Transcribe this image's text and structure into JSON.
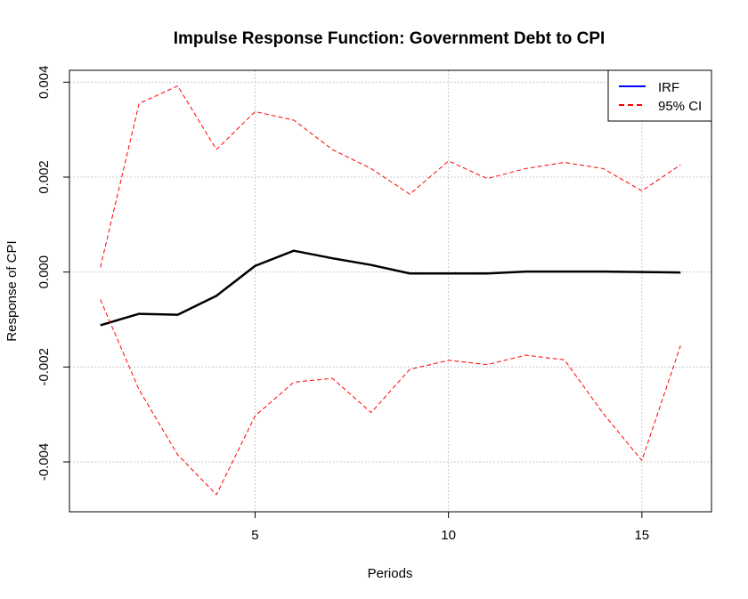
{
  "chart_data": {
    "type": "line",
    "title": "Impulse Response Function: Government Debt to CPI",
    "xlabel": "Periods",
    "ylabel": "Response of CPI",
    "xlim": [
      0.2,
      16.8
    ],
    "ylim": [
      -0.00505,
      0.00425
    ],
    "x_ticks": [
      5,
      10,
      15
    ],
    "x_tick_labels": [
      "5",
      "10",
      "15"
    ],
    "y_ticks": [
      -0.004,
      -0.002,
      0.0,
      0.002,
      0.004
    ],
    "y_tick_labels": [
      "-0.004",
      "-0.002",
      "0.000",
      "0.002",
      "0.004"
    ],
    "grid": true,
    "legend_position": "top-right",
    "x": [
      1,
      2,
      3,
      4,
      5,
      6,
      7,
      8,
      9,
      10,
      11,
      12,
      13,
      14,
      15,
      16
    ],
    "series": [
      {
        "name": "IRF",
        "legend_color": "#0000ff",
        "color": "#000000",
        "style": "solid",
        "values": [
          -0.00112,
          -0.00088,
          -0.0009,
          -0.0005,
          0.00013,
          0.00045,
          0.00029,
          0.00015,
          -3e-05,
          -3e-05,
          -3e-05,
          1e-05,
          1e-05,
          1e-05,
          0.0,
          -1e-05
        ]
      },
      {
        "name": "95% CI",
        "legend_color": "#ff0000",
        "color": "#ff0000",
        "style": "dashed",
        "band": "upper",
        "values": [
          0.0001,
          0.00355,
          0.00392,
          0.00258,
          0.00338,
          0.0032,
          0.00258,
          0.00218,
          0.00164,
          0.00234,
          0.00197,
          0.00218,
          0.00231,
          0.00218,
          0.00171,
          0.00226
        ]
      },
      {
        "name": "95% CI",
        "color": "#ff0000",
        "style": "dashed",
        "band": "lower",
        "values": [
          -0.00058,
          -0.00248,
          -0.00385,
          -0.00469,
          -0.00303,
          -0.00232,
          -0.00224,
          -0.00296,
          -0.00205,
          -0.00186,
          -0.00195,
          -0.00175,
          -0.00185,
          -0.00298,
          -0.00397,
          -0.00155
        ]
      }
    ]
  }
}
